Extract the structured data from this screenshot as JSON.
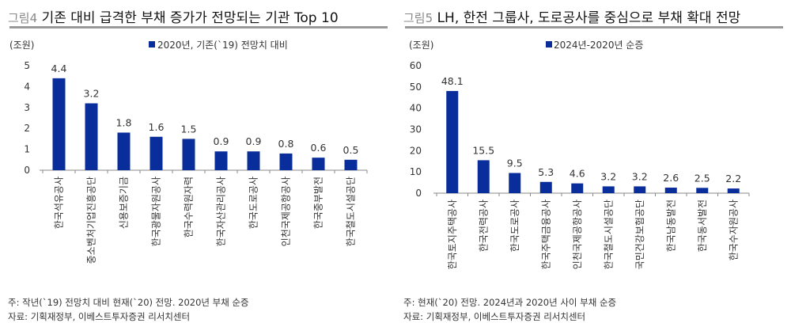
{
  "chart_data": [
    {
      "type": "bar",
      "figure_label": "그림4",
      "title": "기존 대비 급격한 부채 증가가 전망되는 기관 Top 10",
      "unit": "(조원)",
      "legend": "2020년, 기존(`19) 전망치 대비",
      "categories": [
        "한국석유공사",
        "중소벤처기업진흥공단",
        "신용보증기금",
        "한국광물자원공사",
        "한국수력원자력",
        "한국자산관리공사",
        "한국도로공사",
        "인천국제공항공사",
        "한국중부발전",
        "한국철도시설공단"
      ],
      "values": [
        4.4,
        3.2,
        1.8,
        1.6,
        1.5,
        0.9,
        0.9,
        0.8,
        0.6,
        0.5
      ],
      "ylim": [
        0,
        5
      ],
      "yticks": [
        0,
        1,
        2,
        3,
        4,
        5
      ],
      "color": "#0a2d9c",
      "note": "주: 작년(`19) 전망치 대비 현재(`20) 전망. 2020년 부채 순증",
      "source": "자료: 기획재정부, 이베스트투자증권 리서치센터"
    },
    {
      "type": "bar",
      "figure_label": "그림5",
      "title": "LH, 한전 그룹사, 도로공사를 중심으로 부채 확대 전망",
      "unit": "(조원)",
      "legend": "2024년-2020년 순증",
      "categories": [
        "한국토지주택공사",
        "한국전력공사",
        "한국도로공사",
        "한국주택금융공사",
        "인천국제공항공사",
        "한국철도시설공단",
        "국민건강보험공단",
        "한국남동발전",
        "한국동서발전",
        "한국수자원공사"
      ],
      "values": [
        48.1,
        15.5,
        9.5,
        5.3,
        4.6,
        3.2,
        3.2,
        2.6,
        2.5,
        2.2
      ],
      "ylim": [
        0,
        60
      ],
      "yticks": [
        0,
        10,
        20,
        30,
        40,
        50,
        60
      ],
      "color": "#0a2d9c",
      "note": "주: 현재(`20) 전망. 2024년과 2020년 사이 부채 순증",
      "source": "자료: 기획재정부, 이베스트투자증권 리서치센터"
    }
  ]
}
